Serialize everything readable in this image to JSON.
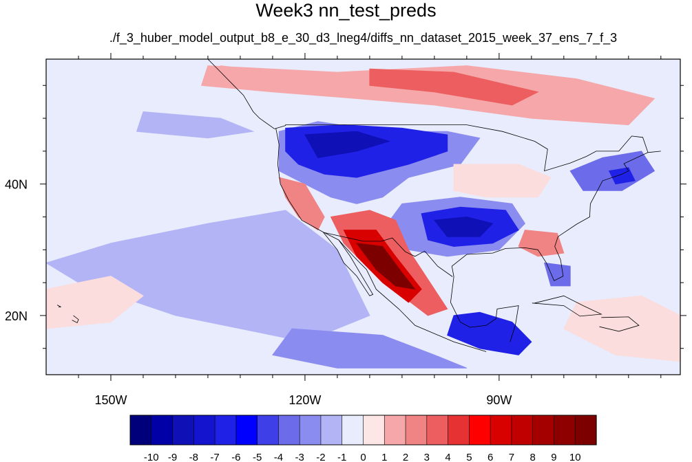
{
  "title": "Week3 nn_test_preds",
  "subtitle": "./f_3_huber_model_output_b8_e_30_d3_lneg4/diffs_nn_dataset_2015_week_37_ens_7_f_3",
  "map": {
    "lon_range": [
      -160,
      -62
    ],
    "lat_range": [
      11,
      59
    ],
    "lon_ticks": [
      {
        "lon": -150,
        "label": "150W"
      },
      {
        "lon": -120,
        "label": "120W"
      },
      {
        "lon": -90,
        "label": "90W"
      }
    ],
    "lat_ticks": [
      {
        "lat": 40,
        "label": "40N"
      },
      {
        "lat": 20,
        "label": "20N"
      }
    ],
    "field_regions": [
      {
        "name": "pacific-background",
        "level": -1,
        "color": "#e8ecfc",
        "lonlat": [
          [
            -160,
            59
          ],
          [
            -62,
            59
          ],
          [
            -62,
            11
          ],
          [
            -160,
            11
          ]
        ]
      },
      {
        "name": "canada-warm",
        "level": 2,
        "color": "#f5a7a9",
        "lonlat": [
          [
            -135,
            58
          ],
          [
            -115,
            57
          ],
          [
            -95,
            58
          ],
          [
            -78,
            56
          ],
          [
            -66,
            53
          ],
          [
            -70,
            49
          ],
          [
            -85,
            50
          ],
          [
            -100,
            52
          ],
          [
            -112,
            53
          ],
          [
            -125,
            54
          ],
          [
            -136,
            55
          ]
        ]
      },
      {
        "name": "canada-warm-core",
        "level": 4,
        "color": "#ec5e5f",
        "lonlat": [
          [
            -110,
            57.5
          ],
          [
            -97,
            57
          ],
          [
            -84,
            54
          ],
          [
            -88,
            52
          ],
          [
            -100,
            54
          ],
          [
            -110,
            55
          ]
        ]
      },
      {
        "name": "alaska-warm",
        "level": 2,
        "color": "#f5a7a9",
        "lonlat": [
          [
            -133,
            58
          ],
          [
            -125,
            57
          ],
          [
            -124,
            54
          ],
          [
            -130,
            55
          ]
        ]
      },
      {
        "name": "pacific-cool-north",
        "level": -2,
        "color": "#b3b4f6",
        "lonlat": [
          [
            -145,
            51
          ],
          [
            -133,
            50
          ],
          [
            -128,
            48
          ],
          [
            -135,
            47
          ],
          [
            -146,
            48
          ]
        ]
      },
      {
        "name": "pacific-cool-band",
        "level": -2,
        "color": "#b3b4f6",
        "lonlat": [
          [
            -150,
            31
          ],
          [
            -135,
            34
          ],
          [
            -123,
            36
          ],
          [
            -115,
            30
          ],
          [
            -110,
            20
          ],
          [
            -120,
            16
          ],
          [
            -140,
            20
          ],
          [
            -155,
            25
          ],
          [
            -160,
            28
          ]
        ]
      },
      {
        "name": "mexico-pacific-cool",
        "level": -3,
        "color": "#8b8cf0",
        "lonlat": [
          [
            -122,
            18
          ],
          [
            -108,
            17
          ],
          [
            -100,
            14
          ],
          [
            -95,
            12
          ],
          [
            -115,
            12
          ],
          [
            -125,
            14
          ]
        ]
      },
      {
        "name": "west-cool-outer",
        "level": -3,
        "color": "#8b8cf0",
        "lonlat": [
          [
            -124,
            48
          ],
          [
            -118,
            49.5
          ],
          [
            -108,
            48
          ],
          [
            -98,
            48
          ],
          [
            -93,
            47
          ],
          [
            -96,
            43
          ],
          [
            -104,
            41
          ],
          [
            -108,
            38
          ],
          [
            -112,
            37
          ],
          [
            -116,
            38
          ],
          [
            -120,
            40
          ],
          [
            -124,
            42
          ]
        ]
      },
      {
        "name": "northwest-cold",
        "level": -6,
        "color": "#2021e6",
        "lonlat": [
          [
            -123,
            48.5
          ],
          [
            -114,
            49
          ],
          [
            -105,
            48.5
          ],
          [
            -98,
            47.5
          ],
          [
            -98,
            45
          ],
          [
            -104,
            43
          ],
          [
            -108,
            42
          ],
          [
            -112,
            41
          ],
          [
            -117,
            41.5
          ],
          [
            -121,
            43
          ],
          [
            -123,
            45
          ]
        ]
      },
      {
        "name": "northwest-cold-core",
        "level": -8,
        "color": "#0f10b6",
        "lonlat": [
          [
            -120,
            47.5
          ],
          [
            -112,
            48
          ],
          [
            -107,
            46.5
          ],
          [
            -112,
            45
          ],
          [
            -118,
            44
          ]
        ]
      },
      {
        "name": "southcentral-cold-outer",
        "level": -3,
        "color": "#8b8cf0",
        "lonlat": [
          [
            -105,
            37
          ],
          [
            -96,
            38
          ],
          [
            -88,
            37
          ],
          [
            -86,
            34
          ],
          [
            -90,
            30
          ],
          [
            -98,
            29
          ],
          [
            -104,
            30
          ],
          [
            -108,
            33
          ]
        ]
      },
      {
        "name": "southcentral-cold",
        "level": -6,
        "color": "#2021e6",
        "lonlat": [
          [
            -102,
            35.5
          ],
          [
            -96,
            36.5
          ],
          [
            -89,
            36
          ],
          [
            -87,
            33
          ],
          [
            -91,
            31
          ],
          [
            -97,
            30.5
          ],
          [
            -101,
            31.5
          ]
        ]
      },
      {
        "name": "southcentral-cold-core",
        "level": -8,
        "color": "#0f10b6",
        "lonlat": [
          [
            -100,
            34.5
          ],
          [
            -95,
            35
          ],
          [
            -91,
            34
          ],
          [
            -93,
            32
          ],
          [
            -98,
            32
          ]
        ]
      },
      {
        "name": "southwest-warm-outer",
        "level": 4,
        "color": "#ec5e5f",
        "lonlat": [
          [
            -116,
            35
          ],
          [
            -110,
            36
          ],
          [
            -106,
            34.5
          ],
          [
            -104,
            30
          ],
          [
            -100,
            24
          ],
          [
            -98,
            21
          ],
          [
            -101,
            20
          ],
          [
            -105,
            23
          ],
          [
            -110,
            27
          ],
          [
            -114,
            31
          ]
        ]
      },
      {
        "name": "southwest-warm",
        "level": 7,
        "color": "#d90000",
        "lonlat": [
          [
            -114,
            33
          ],
          [
            -109,
            33
          ],
          [
            -106,
            29
          ],
          [
            -102,
            24
          ],
          [
            -104,
            22
          ],
          [
            -108,
            25
          ],
          [
            -112,
            29
          ]
        ]
      },
      {
        "name": "southwest-warm-core",
        "level": 10,
        "color": "#7c0000",
        "lonlat": [
          [
            -112,
            31
          ],
          [
            -108,
            30.5
          ],
          [
            -105,
            26.5
          ],
          [
            -103,
            24
          ],
          [
            -106,
            24.5
          ],
          [
            -109,
            27
          ]
        ]
      },
      {
        "name": "california-warm",
        "level": 3,
        "color": "#f08383",
        "lonlat": [
          [
            -124,
            41
          ],
          [
            -120,
            40
          ],
          [
            -117,
            35
          ],
          [
            -118,
            33
          ],
          [
            -121,
            35
          ],
          [
            -123,
            38
          ]
        ]
      },
      {
        "name": "midwest-warm",
        "level": 1,
        "color": "#fbdddd",
        "lonlat": [
          [
            -97,
            43
          ],
          [
            -87,
            43
          ],
          [
            -82,
            41
          ],
          [
            -84,
            38
          ],
          [
            -92,
            38
          ],
          [
            -97,
            39
          ]
        ]
      },
      {
        "name": "southeast-warm",
        "level": 3,
        "color": "#f08383",
        "lonlat": [
          [
            -86,
            33
          ],
          [
            -81,
            32.5
          ],
          [
            -80,
            29.5
          ],
          [
            -84,
            29
          ],
          [
            -87,
            30.5
          ]
        ]
      },
      {
        "name": "northeast-cold",
        "level": -4,
        "color": "#6c6ceb",
        "lonlat": [
          [
            -79,
            42
          ],
          [
            -74,
            44
          ],
          [
            -68,
            45
          ],
          [
            -66,
            42
          ],
          [
            -71,
            39
          ],
          [
            -77,
            39
          ]
        ]
      },
      {
        "name": "northeast-cold-core",
        "level": -6,
        "color": "#2021e6",
        "lonlat": [
          [
            -73,
            42
          ],
          [
            -70,
            42.5
          ],
          [
            -69,
            40.5
          ],
          [
            -72,
            40
          ]
        ]
      },
      {
        "name": "florida-cool",
        "level": -4,
        "color": "#6c6ceb",
        "lonlat": [
          [
            -83,
            28
          ],
          [
            -79,
            27.5
          ],
          [
            -79,
            24.5
          ],
          [
            -82,
            24.5
          ]
        ]
      },
      {
        "name": "gulf-mexico-cold",
        "level": -6,
        "color": "#2021e6",
        "lonlat": [
          [
            -97,
            20
          ],
          [
            -93,
            20.5
          ],
          [
            -88,
            19
          ],
          [
            -85,
            16
          ],
          [
            -87,
            14
          ],
          [
            -93,
            15
          ],
          [
            -98,
            17
          ]
        ]
      },
      {
        "name": "caribbean-warm",
        "level": 1,
        "color": "#fbdddd",
        "lonlat": [
          [
            -78,
            22
          ],
          [
            -68,
            23
          ],
          [
            -62,
            20
          ],
          [
            -62,
            13
          ],
          [
            -72,
            14
          ],
          [
            -80,
            18
          ]
        ]
      },
      {
        "name": "hawaii-warm",
        "level": 1,
        "color": "#fbdddd",
        "lonlat": [
          [
            -160,
            24
          ],
          [
            -150,
            26
          ],
          [
            -145,
            23
          ],
          [
            -150,
            19
          ],
          [
            -160,
            18
          ]
        ]
      }
    ],
    "colorbar": {
      "colors": [
        "#00007a",
        "#0000a6",
        "#0f10b6",
        "#1414ce",
        "#2021e6",
        "#0000ff",
        "#3f3fe8",
        "#6c6ceb",
        "#8b8cf0",
        "#b3b4f6",
        "#e8ecfc",
        "#fce6e6",
        "#f5a7a9",
        "#f08383",
        "#ec5e5f",
        "#e73233",
        "#ff0000",
        "#d90000",
        "#c00000",
        "#a40000",
        "#8e0000",
        "#7c0000"
      ],
      "labels": [
        "-10",
        "-9",
        "-8",
        "-7",
        "-6",
        "-5",
        "-4",
        "-3",
        "-2",
        "-1",
        "0",
        "1",
        "2",
        "3",
        "4",
        "5",
        "6",
        "7",
        "8",
        "9",
        "10"
      ]
    }
  }
}
